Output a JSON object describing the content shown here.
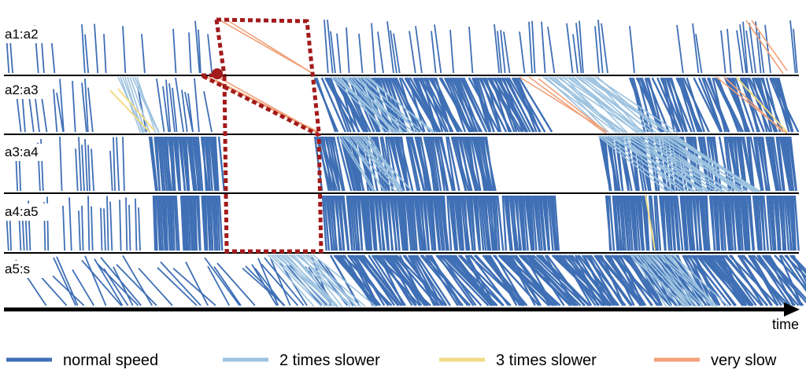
{
  "chart_data": {
    "type": "line",
    "title": "",
    "xlabel": "time",
    "ylabel": "",
    "lanes": [
      "a1:a2",
      "a2:a3",
      "a3:a4",
      "a4:a5",
      "a5:s"
    ],
    "legend": [
      {
        "name": "normal speed",
        "color": "#3f6fb5"
      },
      {
        "name": "2 times slower",
        "color": "#9dc3e0"
      },
      {
        "name": "3 times slower",
        "color": "#f2dc86"
      },
      {
        "name": "very slow",
        "color": "#f0a27a"
      }
    ],
    "highlight_color": "#a31a1a",
    "legend_placement": "bottom"
  }
}
